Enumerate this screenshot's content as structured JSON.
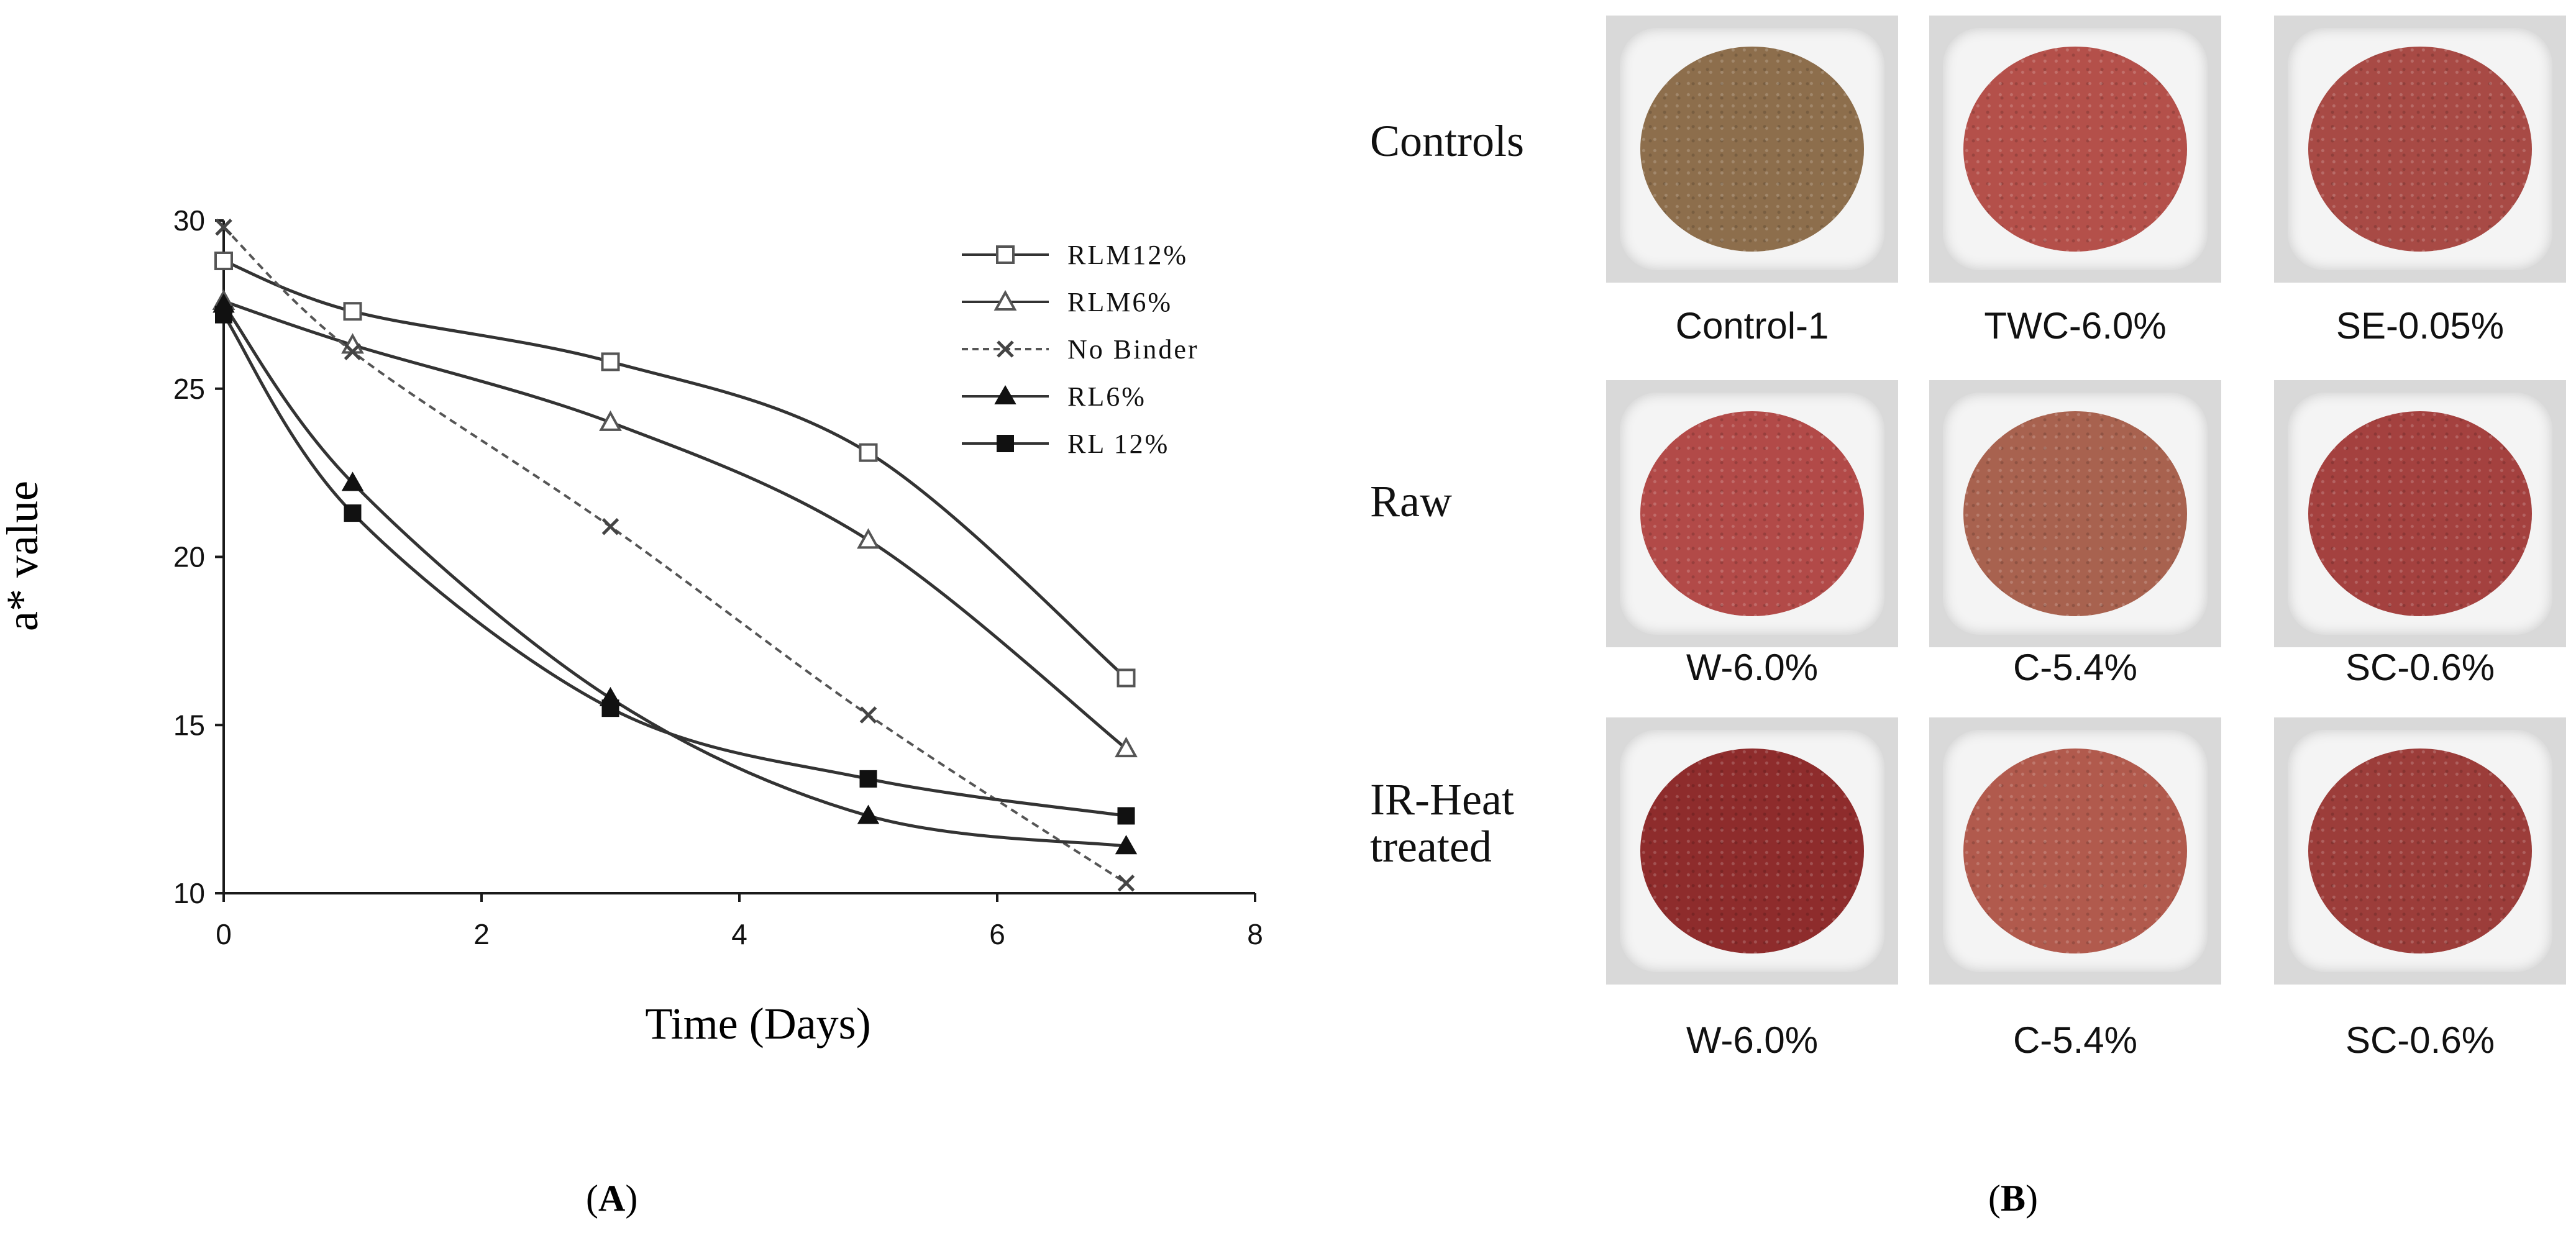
{
  "chart_data": {
    "type": "line",
    "title": "",
    "xlabel": "Time (Days)",
    "ylabel": "a* value",
    "xlim": [
      0,
      8
    ],
    "ylim": [
      10,
      30
    ],
    "xticks": [
      "0",
      "2",
      "4",
      "6",
      "8"
    ],
    "yticks": [
      "10",
      "15",
      "20",
      "25",
      "30"
    ],
    "series": [
      {
        "name": "RLM12%",
        "marker": "open-square",
        "dash": "solid",
        "x": [
          0,
          1,
          3,
          5,
          7
        ],
        "y": [
          28.8,
          27.3,
          25.8,
          23.1,
          16.4
        ]
      },
      {
        "name": "RLM6%",
        "marker": "open-triangle",
        "dash": "solid",
        "x": [
          0,
          1,
          3,
          5,
          7
        ],
        "y": [
          27.6,
          26.3,
          24.0,
          20.5,
          14.3
        ]
      },
      {
        "name": "No Binder",
        "marker": "x",
        "dash": "dashed",
        "x": [
          0,
          1,
          3,
          5,
          7
        ],
        "y": [
          29.8,
          26.1,
          20.9,
          15.3,
          10.3
        ]
      },
      {
        "name": "RL6%",
        "marker": "filled-triangle",
        "dash": "solid",
        "x": [
          0,
          1,
          3,
          5,
          7
        ],
        "y": [
          27.5,
          22.2,
          15.8,
          12.3,
          11.4
        ]
      },
      {
        "name": "RL 12%",
        "marker": "filled-square",
        "dash": "solid",
        "x": [
          0,
          1,
          3,
          5,
          7
        ],
        "y": [
          27.2,
          21.3,
          15.5,
          13.4,
          12.3
        ]
      }
    ],
    "legend_position": "top-right"
  },
  "panel_labels": {
    "a": "A",
    "b": "B"
  },
  "photo_grid": {
    "rows": [
      {
        "label_lines": [
          "Controls"
        ],
        "captions": [
          "Control-1",
          "TWC-6.0%",
          "SE-0.05%"
        ]
      },
      {
        "label_lines": [
          "Raw"
        ],
        "captions": [
          "W-6.0%",
          "C-5.4%",
          "SC-0.6%"
        ]
      },
      {
        "label_lines": [
          "IR-Heat",
          "treated"
        ],
        "captions": [
          "W-6.0%",
          "C-5.4%",
          "SC-0.6%"
        ]
      }
    ],
    "patty_colors": [
      [
        "#8d6e4c",
        "#b4504a",
        "#a84a45"
      ],
      [
        "#b24a48",
        "#a8624f",
        "#a4413f"
      ],
      [
        "#8e2c2c",
        "#b15a4d",
        "#9c3d3a"
      ]
    ]
  },
  "colors": {
    "axis": "#1a1a1a",
    "line": "#333333",
    "tray": "#d9d9d9"
  }
}
